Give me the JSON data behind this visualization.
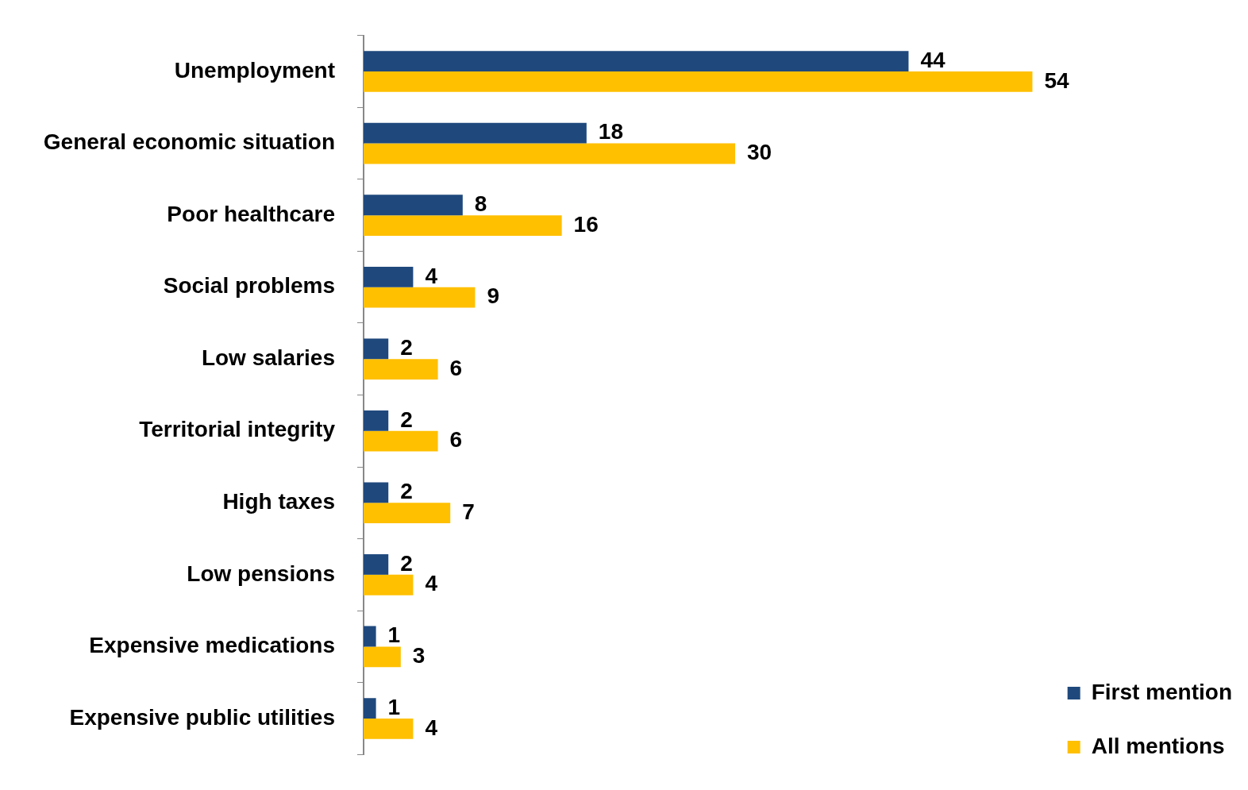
{
  "chart_data": {
    "type": "bar",
    "orientation": "horizontal",
    "data_labels": true,
    "legend": "bottom right",
    "categories": [
      "Unemployment",
      "General economic situation",
      "Poor healthcare",
      "Social problems",
      "Low salaries",
      "Territorial integrity",
      "High taxes",
      "Low pensions",
      "Expensive medications",
      "Expensive public utilities"
    ],
    "series": [
      {
        "name": "First mention",
        "color": "#1f497d",
        "values": [
          44,
          18,
          8,
          4,
          2,
          2,
          2,
          2,
          1,
          1
        ]
      },
      {
        "name": "All mentions",
        "color": "#ffc000",
        "values": [
          54,
          30,
          16,
          9,
          6,
          6,
          7,
          4,
          3,
          4
        ]
      }
    ]
  }
}
